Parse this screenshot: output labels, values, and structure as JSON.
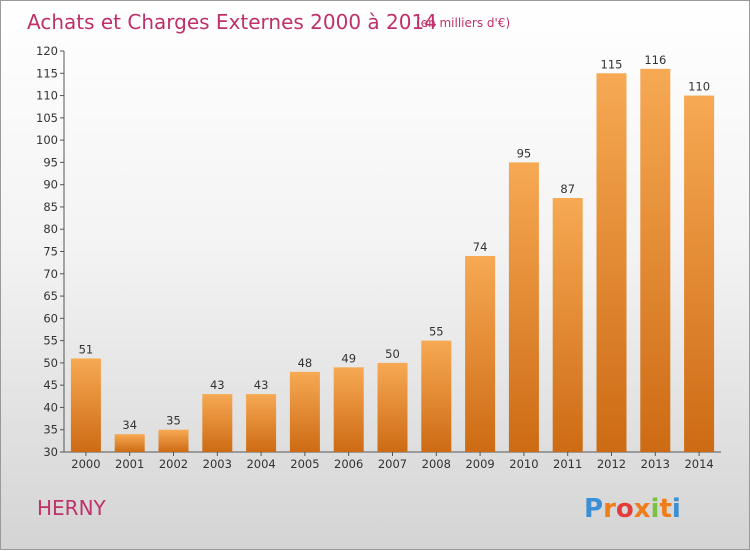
{
  "header": {
    "title": "Achats et Charges Externes 2000 à 2014",
    "subtitle": "(en milliers d'€)"
  },
  "footer": {
    "place": "HERNY",
    "logo_text": "Proxiti",
    "logo_colors": [
      "#3a8fd6",
      "#f07c1a",
      "#e23c3c",
      "#f07c1a",
      "#7cc242",
      "#f07c1a",
      "#3a8fd6"
    ]
  },
  "colors": {
    "title": "#c0306a",
    "bar_light": "#f5a04c",
    "bar_dark": "#cc6a14"
  },
  "chart_data": {
    "type": "bar",
    "title": "Achats et Charges Externes 2000 à 2014",
    "subtitle": "(en milliers d'€)",
    "xlabel": "",
    "ylabel": "",
    "categories": [
      "2000",
      "2001",
      "2002",
      "2003",
      "2004",
      "2005",
      "2006",
      "2007",
      "2008",
      "2009",
      "2010",
      "2011",
      "2012",
      "2013",
      "2014"
    ],
    "values": [
      51,
      34,
      35,
      43,
      43,
      48,
      49,
      50,
      55,
      74,
      95,
      87,
      115,
      116,
      110
    ],
    "ylim": [
      30,
      120
    ],
    "yticks": [
      30,
      35,
      40,
      45,
      50,
      55,
      60,
      65,
      70,
      75,
      80,
      85,
      90,
      95,
      100,
      105,
      110,
      115,
      120
    ],
    "grid": false,
    "legend": "none"
  }
}
